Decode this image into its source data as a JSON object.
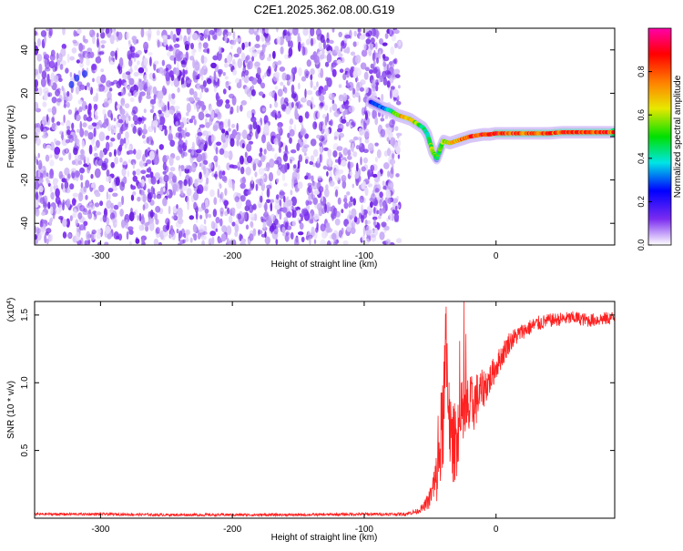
{
  "page": {
    "title": "C2E1.2025.362.08.00.G19"
  },
  "chart_data": [
    {
      "id": "spectrogram",
      "type": "heatmap",
      "title": "C2E1.2025.362.08.00.G19",
      "xlabel": "Height of straight line (km)",
      "ylabel": "Frequency (Hz)",
      "xlim": [
        -350,
        90
      ],
      "ylim": [
        -50,
        50
      ],
      "xticks": [
        -300,
        -200,
        -100,
        0
      ],
      "yticks": [
        -40,
        -20,
        0,
        20,
        40
      ],
      "xtick_labels": [
        "-300",
        "-200",
        "-100",
        "0"
      ],
      "ytick_labels": [
        "-40",
        "-20",
        "0",
        "20",
        "40"
      ],
      "colorbar": {
        "label": "Normalized spectral amplitude",
        "range": [
          0,
          1
        ],
        "ticks": [
          0,
          0.2,
          0.4,
          0.6,
          0.8
        ],
        "tick_labels": [
          "0.0",
          "0.2",
          "0.4",
          "0.6",
          "0.8"
        ],
        "colors": [
          "#ffffff",
          "#7b2cf0",
          "#0000ff",
          "#00e5e5",
          "#00e000",
          "#e8e800",
          "#ff8000",
          "#ff0000",
          "#ff00aa"
        ]
      },
      "noise_region": {
        "x_range": [
          -350,
          -73
        ],
        "y_range": [
          -50,
          50
        ],
        "level": 0.15
      },
      "signal_track": [
        {
          "x": -95,
          "y": 16,
          "amp": 0.25
        },
        {
          "x": -85,
          "y": 13,
          "amp": 0.3
        },
        {
          "x": -80,
          "y": 12,
          "amp": 0.4
        },
        {
          "x": -75,
          "y": 10,
          "amp": 0.6
        },
        {
          "x": -70,
          "y": 9,
          "amp": 0.7
        },
        {
          "x": -65,
          "y": 8,
          "amp": 0.65
        },
        {
          "x": -60,
          "y": 6,
          "amp": 0.55
        },
        {
          "x": -55,
          "y": 4,
          "amp": 0.45
        },
        {
          "x": -52,
          "y": 1,
          "amp": 0.4
        },
        {
          "x": -50,
          "y": -3,
          "amp": 0.5
        },
        {
          "x": -48,
          "y": -7,
          "amp": 0.6
        },
        {
          "x": -45,
          "y": -10,
          "amp": 0.5
        },
        {
          "x": -40,
          "y": -2,
          "amp": 0.55
        },
        {
          "x": -35,
          "y": -3,
          "amp": 0.65
        },
        {
          "x": -30,
          "y": -2,
          "amp": 0.7
        },
        {
          "x": -25,
          "y": -1,
          "amp": 0.75
        },
        {
          "x": -20,
          "y": 0,
          "amp": 0.8
        },
        {
          "x": -15,
          "y": 0.5,
          "amp": 0.8
        },
        {
          "x": -10,
          "y": 1,
          "amp": 0.85
        },
        {
          "x": -5,
          "y": 1,
          "amp": 0.8
        },
        {
          "x": 0,
          "y": 1.5,
          "amp": 0.85
        },
        {
          "x": 10,
          "y": 1.5,
          "amp": 0.8
        },
        {
          "x": 20,
          "y": 1.5,
          "amp": 0.8
        },
        {
          "x": 30,
          "y": 1.5,
          "amp": 0.8
        },
        {
          "x": 40,
          "y": 1.5,
          "amp": 0.8
        },
        {
          "x": 50,
          "y": 2,
          "amp": 0.8
        },
        {
          "x": 60,
          "y": 2,
          "amp": 0.8
        },
        {
          "x": 70,
          "y": 2,
          "amp": 0.8
        },
        {
          "x": 80,
          "y": 2,
          "amp": 0.8
        },
        {
          "x": 90,
          "y": 2,
          "amp": 0.8
        }
      ]
    },
    {
      "id": "snr",
      "type": "line",
      "xlabel": "Height of straight line (km)",
      "ylabel": "SNR (10 * v/v)",
      "y_multiplier": "(x10",
      "y_multiplier_exp": "4",
      "y_multiplier_close": ")",
      "xlim": [
        -350,
        90
      ],
      "ylim": [
        0,
        1.6
      ],
      "xticks": [
        -300,
        -200,
        -100,
        0
      ],
      "yticks": [
        0.5,
        1.0,
        1.5
      ],
      "xtick_labels": [
        "-300",
        "-200",
        "-100",
        "0"
      ],
      "ytick_labels": [
        "0.5",
        "1.0",
        "1.5"
      ],
      "color": "#ff2020",
      "series": [
        {
          "x": [
            -350,
            -300,
            -250,
            -200,
            -150,
            -100,
            -70,
            -60,
            -55,
            -50,
            -45,
            -42,
            -40,
            -38,
            -36,
            -34,
            -30,
            -25,
            -20,
            -15,
            -10,
            -5,
            0,
            10,
            20,
            30,
            40,
            50,
            60,
            70,
            80,
            90
          ],
          "values": [
            0.03,
            0.03,
            0.025,
            0.025,
            0.025,
            0.03,
            0.03,
            0.05,
            0.08,
            0.15,
            0.3,
            0.55,
            0.8,
            1.1,
            1.0,
            0.5,
            0.6,
            0.75,
            0.8,
            0.88,
            0.95,
            1.02,
            1.12,
            1.3,
            1.38,
            1.43,
            1.46,
            1.47,
            1.48,
            1.46,
            1.47,
            1.48
          ],
          "jitter": [
            0.01,
            0.01,
            0.01,
            0.01,
            0.01,
            0.01,
            0.012,
            0.02,
            0.03,
            0.08,
            0.2,
            0.35,
            0.45,
            0.5,
            0.45,
            0.3,
            0.3,
            0.3,
            0.25,
            0.2,
            0.15,
            0.12,
            0.1,
            0.08,
            0.06,
            0.06,
            0.05,
            0.05,
            0.05,
            0.05,
            0.05,
            0.05
          ]
        }
      ]
    }
  ]
}
